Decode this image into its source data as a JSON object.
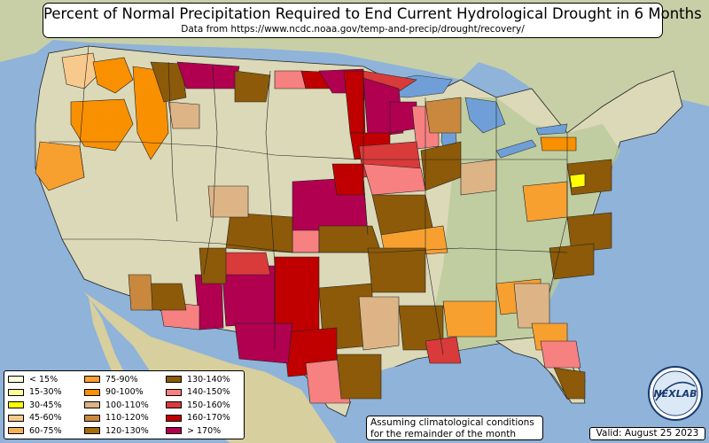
{
  "title": {
    "main": "Percent of Normal Precipitation Required to End Current Hydrological Drought in 6 Months",
    "sub": "Data from https://www.ncdc.noaa.gov/temp-and-precip/drought/recovery/"
  },
  "legend": {
    "items": [
      {
        "label": "< 15%",
        "color": "#ffffe0"
      },
      {
        "label": "15-30%",
        "color": "#ffff99"
      },
      {
        "label": "30-45%",
        "color": "#ffff00"
      },
      {
        "label": "45-60%",
        "color": "#f7c98c"
      },
      {
        "label": "60-75%",
        "color": "#f5b15a"
      },
      {
        "label": "75-90%",
        "color": "#f7a030"
      },
      {
        "label": "90-100%",
        "color": "#f89000"
      },
      {
        "label": "100-110%",
        "color": "#ddb486"
      },
      {
        "label": "110-120%",
        "color": "#c9883e"
      },
      {
        "label": "120-130%",
        "color": "#a66d0a"
      },
      {
        "label": "130-140%",
        "color": "#8c5a08"
      },
      {
        "label": "140-150%",
        "color": "#f78080"
      },
      {
        "label": "150-160%",
        "color": "#d93a3a"
      },
      {
        "label": "160-170%",
        "color": "#c00000"
      },
      {
        "label": "> 170%",
        "color": "#b0004f"
      }
    ]
  },
  "note": {
    "line1": "Assuming climatological conditions",
    "line2": "for the remainder of the month"
  },
  "valid": "Valid: August 25 2023",
  "logo": {
    "text": "NEXLAB",
    "part1": "NEX",
    "part2": "LAB"
  },
  "colors": {
    "ocean": "#8fb3d9",
    "land_neutral": "#dcd9b8",
    "land_green": "#b9c99a",
    "lake": "#6f9fd6"
  }
}
